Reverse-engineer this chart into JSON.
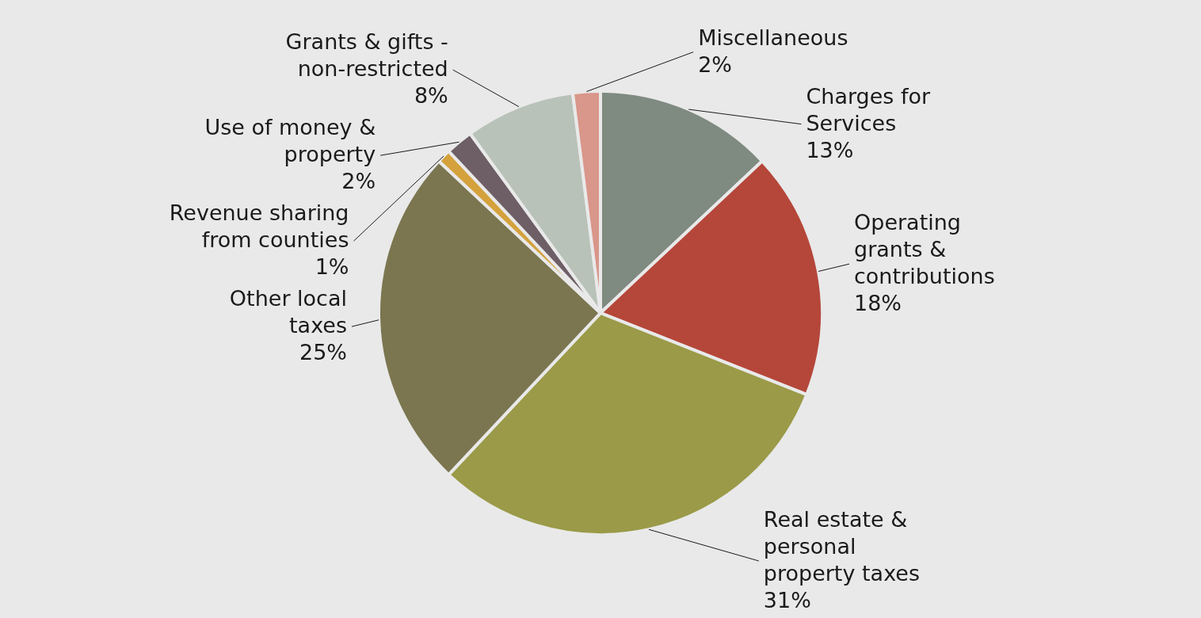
{
  "chart_data": {
    "type": "pie",
    "categories": [
      "Charges for\nServices",
      "Operating\ngrants &\ncontributions",
      "Real estate &\npersonal\nproperty taxes",
      "Other local\ntaxes",
      "Revenue sharing\nfrom counties",
      "Use of money &\nproperty",
      "Grants & gifts -\nnon-restricted",
      "Miscellaneous"
    ],
    "values": [
      13,
      18,
      31,
      25,
      1,
      2,
      8,
      2
    ],
    "value_labels": [
      "13%",
      "18%",
      "31%",
      "25%",
      "1%",
      "2%",
      "8%",
      "2%"
    ],
    "colors": [
      "#7f8a80",
      "#b5473a",
      "#9a9a48",
      "#7b7650",
      "#d4a13c",
      "#6e5e66",
      "#b8c2b8",
      "#d9968a"
    ]
  }
}
